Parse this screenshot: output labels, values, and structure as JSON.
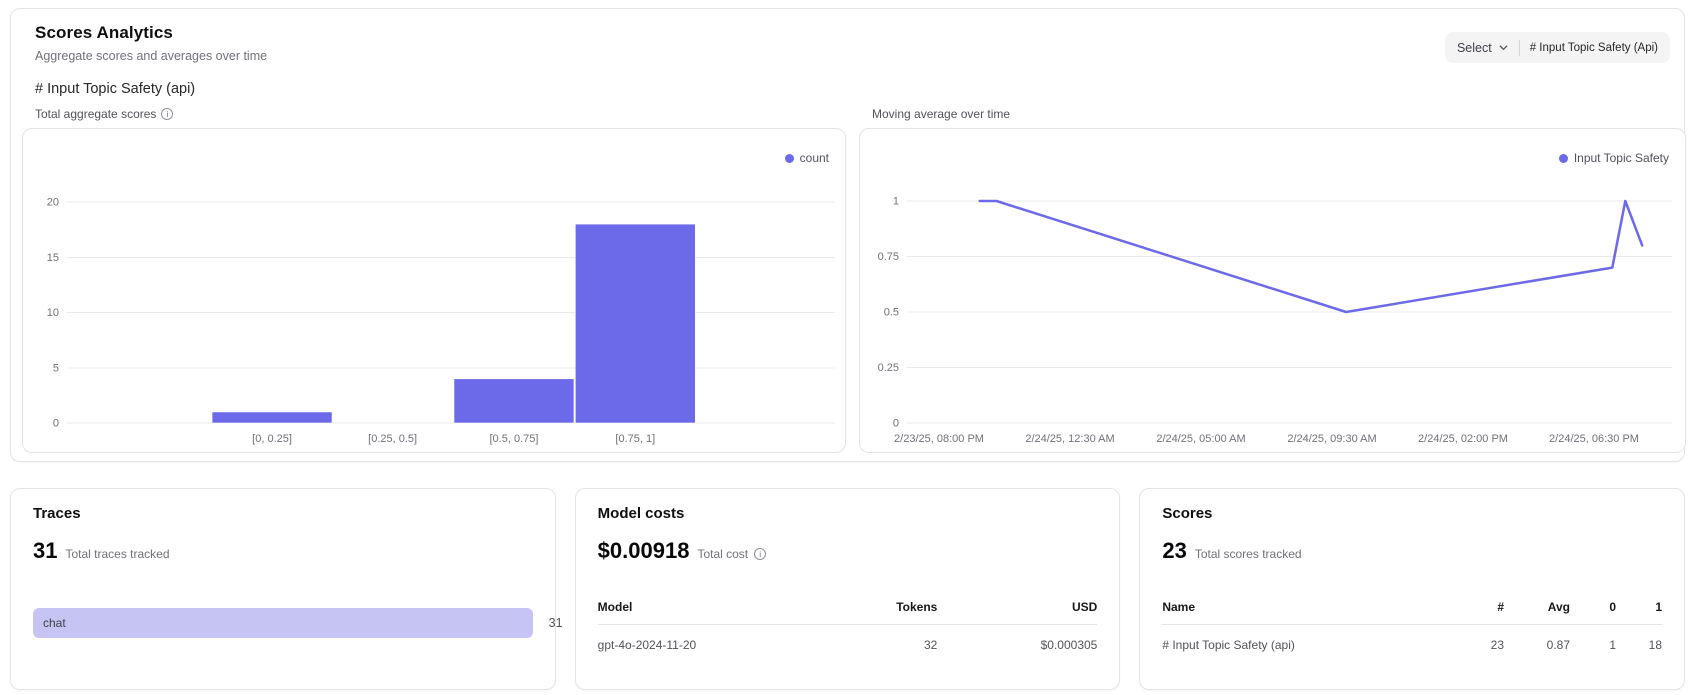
{
  "header": {
    "title": "Scores Analytics",
    "subtitle": "Aggregate scores and averages over time",
    "select_label": "Select",
    "selected_filter": "# Input Topic Safety (Api)",
    "section_title": "# Input Topic Safety (api)"
  },
  "colors": {
    "accent": "#6c6ae8",
    "accent_light": "#c6c4f2",
    "grid": "#ebebee",
    "tick": "#71717a"
  },
  "chart_data": [
    {
      "type": "bar",
      "title": "Total aggregate scores",
      "legend": [
        "count"
      ],
      "legend_position": "top-right",
      "grid": true,
      "categories": [
        "[0, 0.25]",
        "[0.25, 0.5]",
        "[0.5, 0.75]",
        "[0.75, 1]"
      ],
      "values": [
        1,
        0,
        4,
        18
      ],
      "ylabel": "count",
      "ylim": [
        0,
        20
      ],
      "yticks": [
        0,
        5,
        10,
        15,
        20
      ]
    },
    {
      "type": "line",
      "title": "Moving average over time",
      "legend": [
        "Input Topic Safety"
      ],
      "legend_position": "top-right",
      "grid": true,
      "xticks": [
        "2/23/25, 08:00 PM",
        "2/24/25, 12:30 AM",
        "2/24/25, 05:00 AM",
        "2/24/25, 09:30 AM",
        "2/24/25, 02:00 PM",
        "2/24/25, 06:30 PM"
      ],
      "ylim": [
        0,
        1
      ],
      "yticks": [
        0,
        0.25,
        0.5,
        0.75,
        1
      ],
      "points": [
        {
          "x_frac": 0.095,
          "y": 1
        },
        {
          "x_frac": 0.117,
          "y": 1
        },
        {
          "x_frac": 0.574,
          "y": 0.5
        },
        {
          "x_frac": 0.922,
          "y": 0.7
        },
        {
          "x_frac": 0.939,
          "y": 1
        },
        {
          "x_frac": 0.961,
          "y": 0.8
        }
      ]
    }
  ],
  "traces": {
    "title": "Traces",
    "total": "31",
    "total_label": "Total traces tracked",
    "bars": [
      {
        "label": "chat",
        "value": "31",
        "fraction": 1.0
      }
    ]
  },
  "model_costs": {
    "title": "Model costs",
    "total": "$0.00918",
    "total_label": "Total cost",
    "columns": [
      "Model",
      "Tokens",
      "USD"
    ],
    "rows": [
      [
        "gpt-4o-2024-11-20",
        "32",
        "$0.000305"
      ]
    ]
  },
  "scores": {
    "title": "Scores",
    "total": "23",
    "total_label": "Total scores tracked",
    "columns": [
      "Name",
      "#",
      "Avg",
      "0",
      "1"
    ],
    "rows": [
      [
        "# Input Topic Safety (api)",
        "23",
        "0.87",
        "1",
        "18"
      ]
    ]
  }
}
